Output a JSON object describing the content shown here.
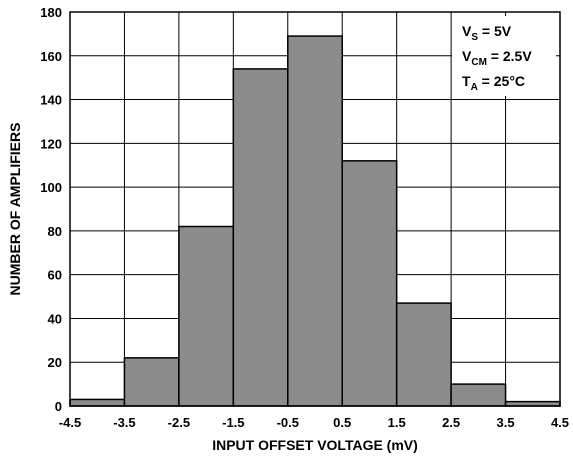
{
  "chart_data": {
    "type": "bar",
    "title": "",
    "xlabel": "INPUT OFFSET VOLTAGE (mV)",
    "ylabel": "NUMBER OF AMPLIFIERS",
    "bin_edges": [
      -4.5,
      -3.5,
      -2.5,
      -1.5,
      -0.5,
      0.5,
      1.5,
      2.5,
      3.5,
      4.5
    ],
    "values": [
      3,
      22,
      82,
      154,
      169,
      112,
      47,
      10,
      2
    ],
    "xticks": [
      "-4.5",
      "-3.5",
      "-2.5",
      "-1.5",
      "-0.5",
      "0.5",
      "1.5",
      "2.5",
      "3.5",
      "4.5"
    ],
    "yticks": [
      "0",
      "20",
      "40",
      "60",
      "80",
      "100",
      "120",
      "140",
      "160",
      "180"
    ],
    "xlim": [
      -4.5,
      4.5
    ],
    "ylim": [
      0,
      180
    ],
    "grid": true,
    "bar_color": "#8c8c8c",
    "annotations": [
      {
        "main": "V",
        "sub": "S",
        "rest": " = 5V"
      },
      {
        "main": "V",
        "sub": "CM",
        "rest": " = 2.5V"
      },
      {
        "main": "T",
        "sub": "A",
        "rest": " = 25°C"
      }
    ]
  }
}
